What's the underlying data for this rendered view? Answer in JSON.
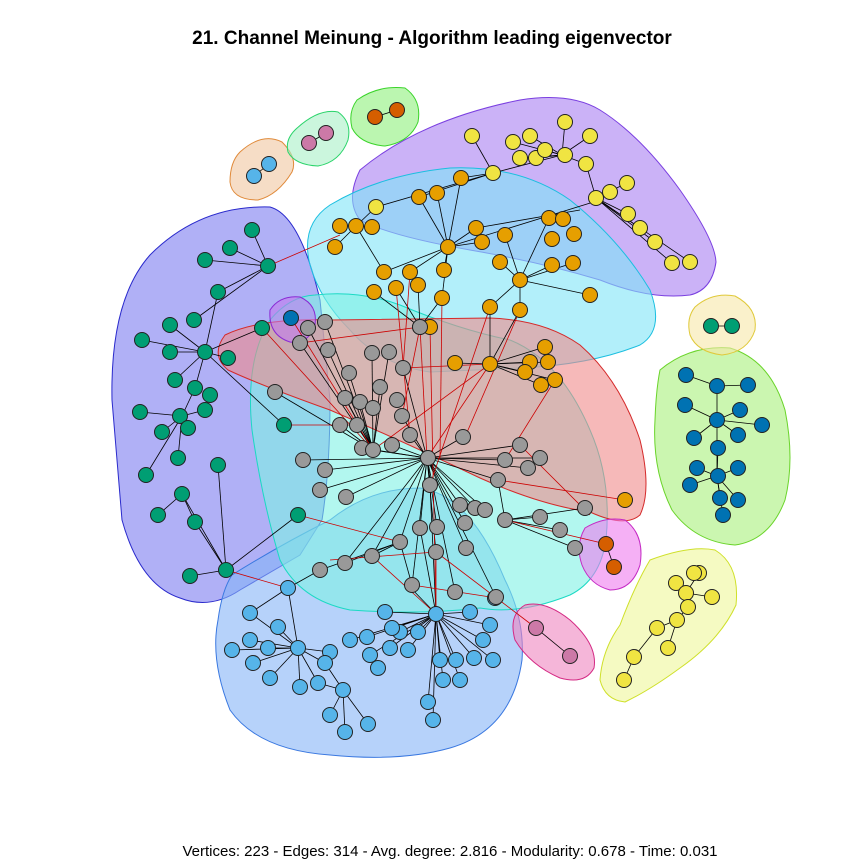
{
  "figure": {
    "title": "21. Channel Meinung - Algorithm leading eigenvector",
    "footer": "Vertices: 223 - Edges: 314 - Avg. degree: 2.816 - Modularity: 0.678 - Time: 0.031"
  },
  "communities": [
    {
      "id": "green-left",
      "fill": "#7b7bf0",
      "stroke": "#2a2acc",
      "node": "#009E73"
    },
    {
      "id": "blue-bottom",
      "fill": "#86b4f7",
      "stroke": "#3a78e0",
      "node": "#56B4E9"
    },
    {
      "id": "orange-top",
      "fill": "#7fe4f7",
      "stroke": "#1bbfe0",
      "node": "#E69F00"
    },
    {
      "id": "yellow-top-right",
      "fill": "#a97ff2",
      "stroke": "#7a3fe0",
      "node": "#F0E442"
    },
    {
      "id": "grey-center",
      "fill": "#7ff2e4",
      "stroke": "#1bd9c4",
      "node": "#999999"
    },
    {
      "id": "red-band",
      "fill": "#f08a8a",
      "stroke": "#d42a2a",
      "node": "#999999"
    },
    {
      "id": "dark-blue-right",
      "fill": "#a8f07b",
      "stroke": "#6ad42a",
      "node": "#0072B2"
    },
    {
      "id": "yellow-bottom-right",
      "fill": "#eef79a",
      "stroke": "#cfe02a",
      "node": "#F0E442"
    },
    {
      "id": "pink-pair",
      "fill": "#ef86c0",
      "stroke": "#d42a84",
      "node": "#CC79A7"
    },
    {
      "id": "orange-pair",
      "fill": "#f0c7a0",
      "stroke": "#e08a3a",
      "node": "#56B4E9"
    },
    {
      "id": "mint-pair",
      "fill": "#a8f0c7",
      "stroke": "#2ad46a",
      "node": "#CC79A7"
    },
    {
      "id": "green-pair",
      "fill": "#8ef07b",
      "stroke": "#3ad42a",
      "node": "#D55E00"
    },
    {
      "id": "teal-pair",
      "fill": "#f7e7a8",
      "stroke": "#e0c93a",
      "node": "#009E73"
    },
    {
      "id": "magenta-pair",
      "fill": "#ef7bef",
      "stroke": "#c42ac4",
      "node": "#D55E00"
    },
    {
      "id": "purple-single",
      "fill": "#c27bef",
      "stroke": "#8a2ad4",
      "node": "#0072B2"
    }
  ],
  "edge_colors": {
    "intra": "#000000",
    "inter": "#cc0000"
  }
}
